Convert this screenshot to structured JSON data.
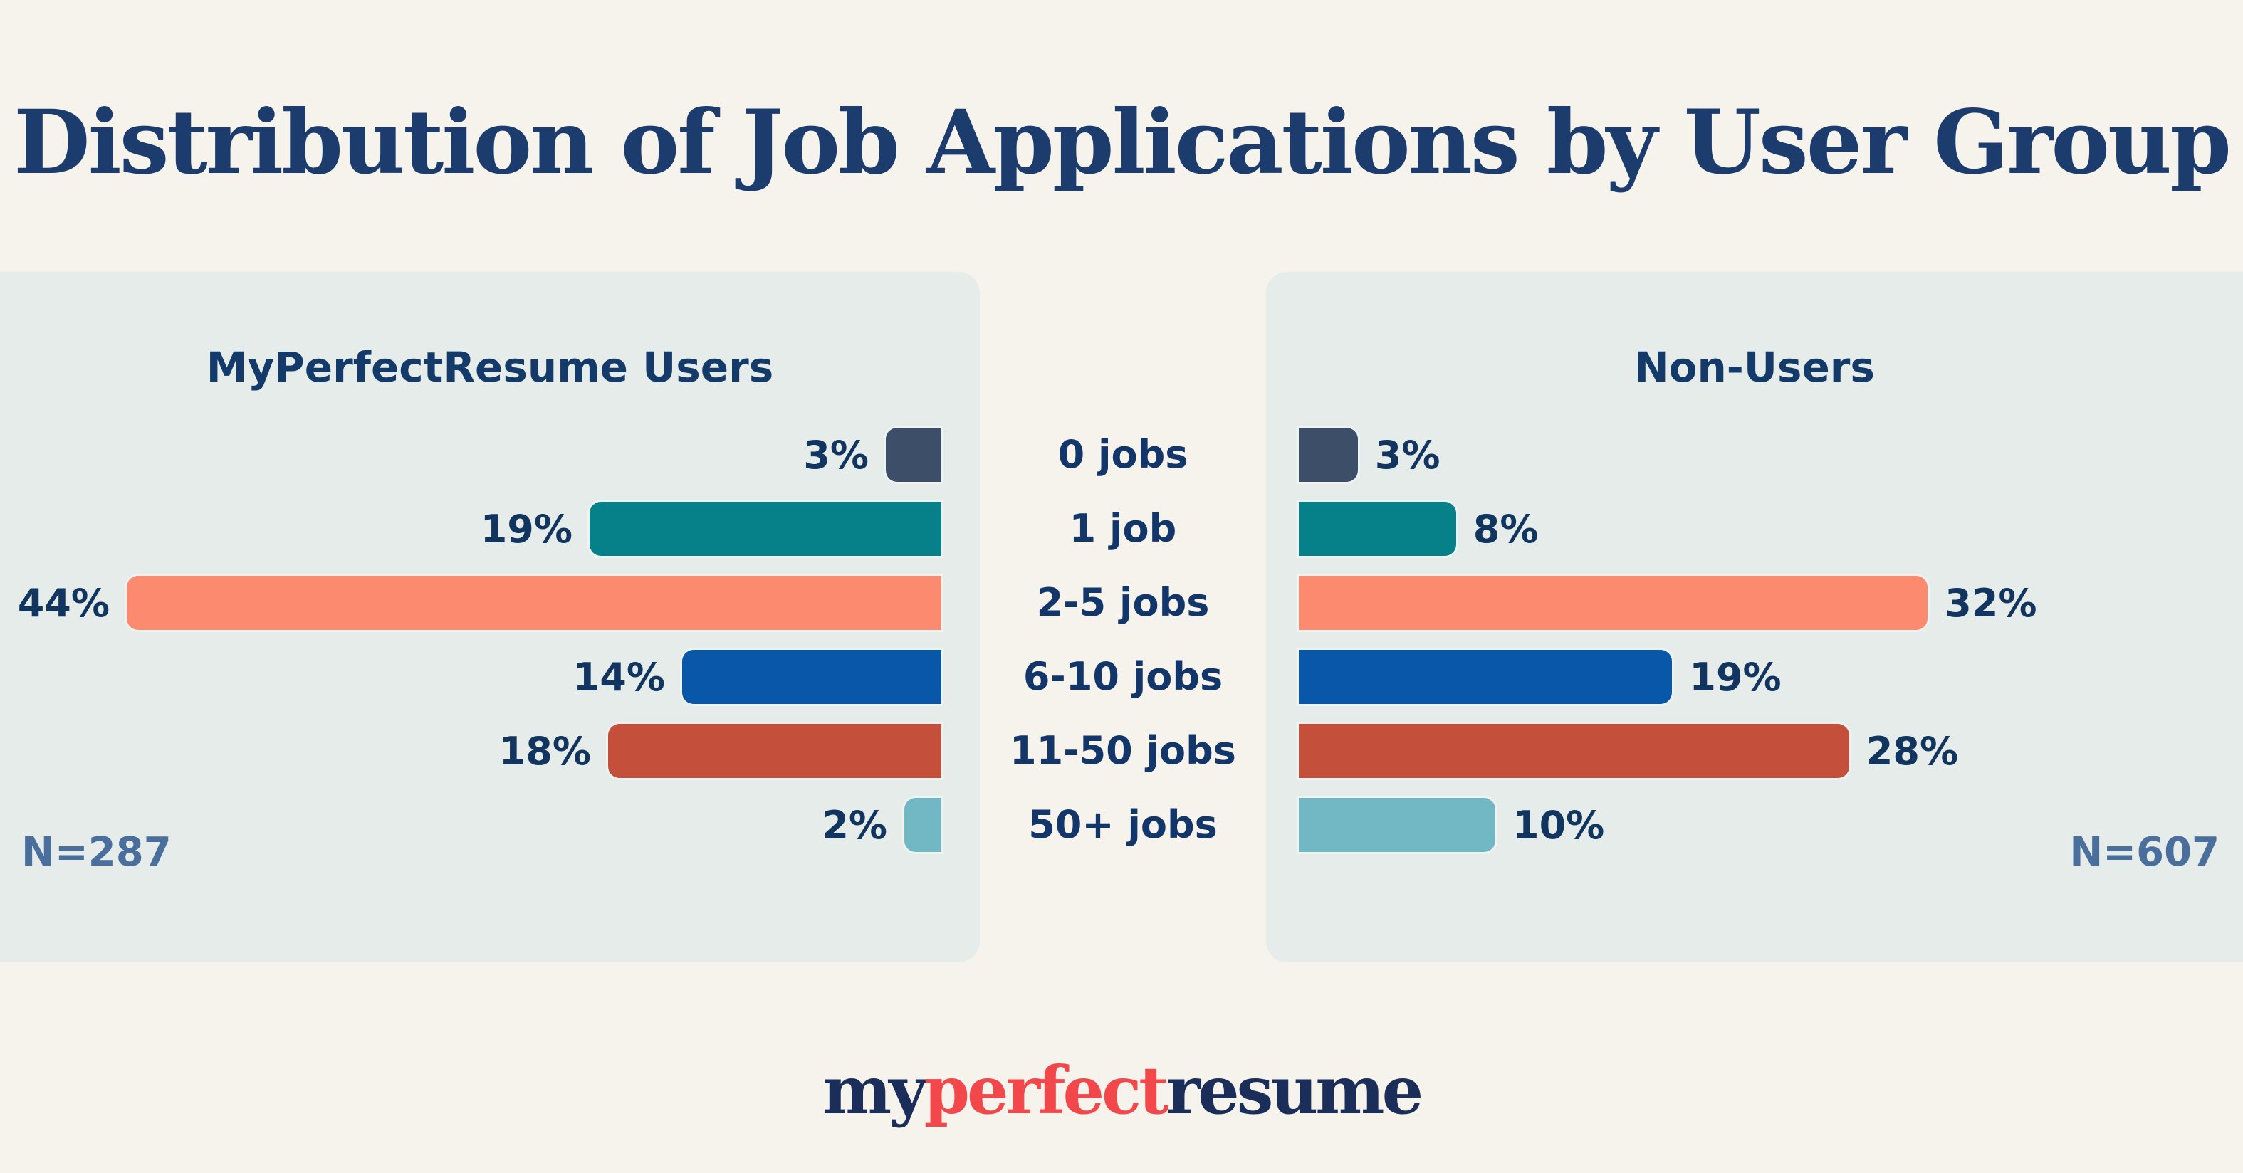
{
  "title": "Distribution of Job Applications by User Group",
  "chart_data": {
    "type": "bar",
    "orientation": "horizontal",
    "layout": "mirrored two-panel bar chart with shared centered category axis, value labels at bar ends, no gridlines, no numeric axis",
    "title": "Distribution of Job Applications by User Group",
    "categories": [
      "0 jobs",
      "1 job",
      "2-5 jobs",
      "6-10 jobs",
      "11-50 jobs",
      "50+ jobs"
    ],
    "series": [
      {
        "name": "MyPerfectResume Users",
        "values": [
          3,
          19,
          44,
          14,
          18,
          2
        ],
        "sample_size_label": "N=287",
        "bars_grow": "leftward from right edge"
      },
      {
        "name": "Non-Users",
        "values": [
          3,
          8,
          32,
          19,
          28,
          10
        ],
        "sample_size_label": "N=607",
        "bars_grow": "rightward from left edge"
      }
    ],
    "value_suffix": "%",
    "value_labels_shown": true,
    "category_colors": [
      "#3d4e69",
      "#06818a",
      "#fb8a6f",
      "#0857a8",
      "#c44f3a",
      "#72b8c4"
    ],
    "xlim": [
      0,
      46
    ],
    "grid": false,
    "legend": "none"
  },
  "colors": {
    "background": "#f6f3ec",
    "panel_background": "#e5ecea",
    "title_navy": "#1d3c6e",
    "label_navy": "#12366a",
    "sample_size_steel_blue": "#4a6f9d",
    "logo_navy": "#1b2e5a",
    "logo_red": "#f2484c"
  },
  "logo": {
    "part1": "my",
    "part2": "perfect",
    "part3": "resume"
  }
}
